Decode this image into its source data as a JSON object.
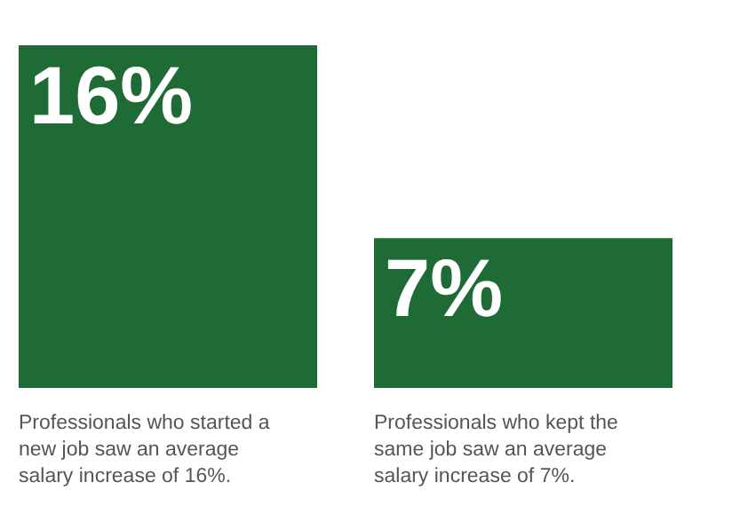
{
  "chart_data": {
    "type": "bar",
    "categories": [
      "Professionals who started a new job saw an average salary increase of 16%.",
      "Professionals who kept the same job saw an average salary increase of 7%."
    ],
    "values": [
      16,
      7
    ],
    "value_labels": [
      "16%",
      "7%"
    ],
    "color": "#1e6b35",
    "grid": false
  }
}
